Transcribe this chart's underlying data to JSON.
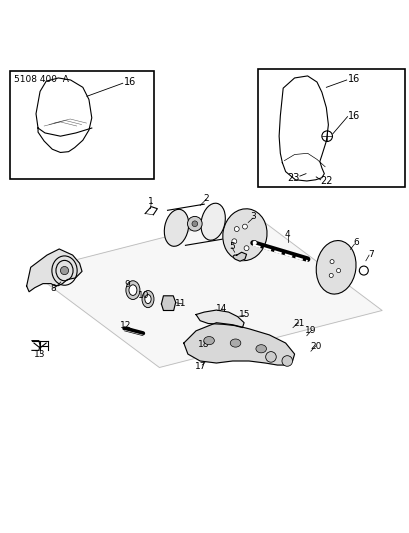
{
  "title": "5108 400  A",
  "background_color": "#ffffff",
  "line_color": "#000000",
  "fig_width": 4.1,
  "fig_height": 5.33,
  "dpi": 100
}
